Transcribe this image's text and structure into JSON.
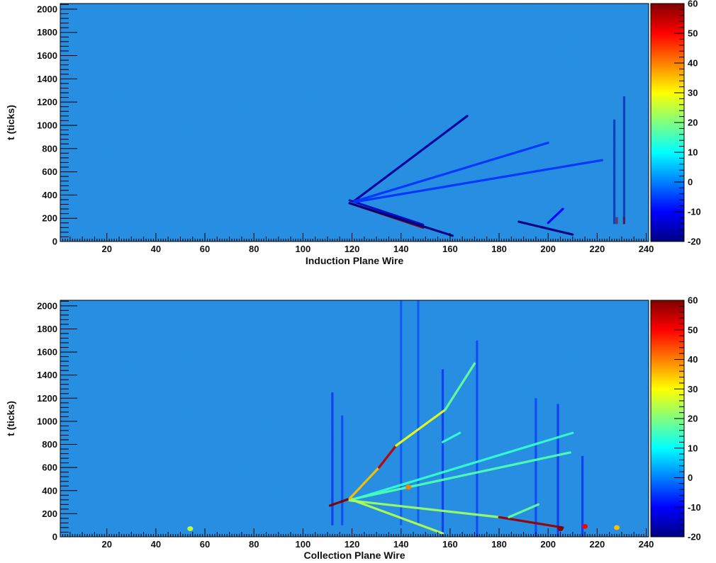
{
  "chart_data": [
    {
      "type": "heatmap",
      "title": "",
      "xlabel": "Induction Plane Wire",
      "ylabel": "t (ticks)",
      "xlim": [
        1,
        241
      ],
      "ylim": [
        0,
        2048
      ],
      "x_ticks": [
        20,
        40,
        60,
        80,
        100,
        120,
        140,
        160,
        180,
        200,
        220,
        240
      ],
      "y_ticks": [
        0,
        200,
        400,
        600,
        800,
        1000,
        1200,
        1400,
        1600,
        1800,
        2000
      ],
      "z_range": [
        -20,
        60
      ],
      "z_ticks": [
        -20,
        -10,
        0,
        10,
        20,
        30,
        40,
        50,
        60
      ],
      "colormap": "jet",
      "background_value": 2,
      "tracks": [
        {
          "x": [
            119,
            149
          ],
          "y": [
            330,
            120
          ],
          "value": 60,
          "shadow": -15
        },
        {
          "x": [
            119,
            161
          ],
          "y": [
            330,
            50
          ],
          "value": -20
        },
        {
          "x": [
            121,
            167
          ],
          "y": [
            350,
            1080
          ],
          "value": -18
        },
        {
          "x": [
            121,
            200
          ],
          "y": [
            345,
            850
          ],
          "value": -6
        },
        {
          "x": [
            121,
            222
          ],
          "y": [
            340,
            700
          ],
          "value": -6
        },
        {
          "x": [
            188,
            210
          ],
          "y": [
            170,
            60
          ],
          "value": -20
        },
        {
          "x": [
            200,
            206
          ],
          "y": [
            160,
            280
          ],
          "value": -10
        }
      ],
      "vertical_features": [
        {
          "x": 227,
          "y": [
            150,
            1050
          ],
          "value": -18
        },
        {
          "x": 231,
          "y": [
            150,
            1250
          ],
          "value": -18
        },
        {
          "x": 228,
          "y": [
            150,
            210
          ],
          "value": 60
        },
        {
          "x": 231,
          "y": [
            150,
            210
          ],
          "value": 60
        }
      ]
    },
    {
      "type": "heatmap",
      "title": "",
      "xlabel": "Collection Plane Wire",
      "ylabel": "t (ticks)",
      "xlim": [
        1,
        241
      ],
      "ylim": [
        0,
        2048
      ],
      "x_ticks": [
        20,
        40,
        60,
        80,
        100,
        120,
        140,
        160,
        180,
        200,
        220,
        240
      ],
      "y_ticks": [
        0,
        200,
        400,
        600,
        800,
        1000,
        1200,
        1400,
        1600,
        1800,
        2000
      ],
      "z_range": [
        -20,
        60
      ],
      "z_ticks": [
        -20,
        -10,
        0,
        10,
        20,
        30,
        40,
        50,
        60
      ],
      "colormap": "jet",
      "background_value": 2,
      "tracks": [
        {
          "x": [
            111,
            119
          ],
          "y": [
            270,
            330
          ],
          "value": 60
        },
        {
          "x": [
            119,
            131
          ],
          "y": [
            330,
            600
          ],
          "value": 35
        },
        {
          "x": [
            131,
            138
          ],
          "y": [
            600,
            790
          ],
          "value": 55
        },
        {
          "x": [
            138,
            158
          ],
          "y": [
            790,
            1100
          ],
          "value": 28
        },
        {
          "x": [
            158,
            170
          ],
          "y": [
            1100,
            1500
          ],
          "value": 18
        },
        {
          "x": [
            120,
            210
          ],
          "y": [
            320,
            900
          ],
          "value": 14
        },
        {
          "x": [
            120,
            209
          ],
          "y": [
            325,
            730
          ],
          "value": 16
        },
        {
          "x": [
            119,
            180
          ],
          "y": [
            315,
            170
          ],
          "value": 22
        },
        {
          "x": [
            180,
            206
          ],
          "y": [
            170,
            80
          ],
          "value": 58
        },
        {
          "x": [
            120,
            157
          ],
          "y": [
            320,
            30
          ],
          "value": 24
        },
        {
          "x": [
            184,
            196
          ],
          "y": [
            170,
            280
          ],
          "value": 18
        },
        {
          "x": [
            157,
            164
          ],
          "y": [
            820,
            900
          ],
          "value": 14
        }
      ],
      "vertical_features": [
        {
          "x": 112,
          "y": [
            100,
            1250
          ],
          "value": -10
        },
        {
          "x": 116,
          "y": [
            100,
            1050
          ],
          "value": -8
        },
        {
          "x": 140,
          "y": [
            100,
            2048
          ],
          "value": -6
        },
        {
          "x": 147,
          "y": [
            100,
            2048
          ],
          "value": -6
        },
        {
          "x": 157,
          "y": [
            0,
            1450
          ],
          "value": -10
        },
        {
          "x": 171,
          "y": [
            0,
            1700
          ],
          "value": -8
        },
        {
          "x": 195,
          "y": [
            0,
            1200
          ],
          "value": -8
        },
        {
          "x": 204,
          "y": [
            0,
            1150
          ],
          "value": -10
        },
        {
          "x": 214,
          "y": [
            0,
            700
          ],
          "value": -10
        }
      ],
      "hot_spots": [
        {
          "x": 54,
          "y": 70,
          "value": 25
        },
        {
          "x": 205,
          "y": 70,
          "value": 60
        },
        {
          "x": 215,
          "y": 90,
          "value": 50
        },
        {
          "x": 143,
          "y": 430,
          "value": 40
        },
        {
          "x": 228,
          "y": 80,
          "value": 35
        }
      ]
    }
  ]
}
